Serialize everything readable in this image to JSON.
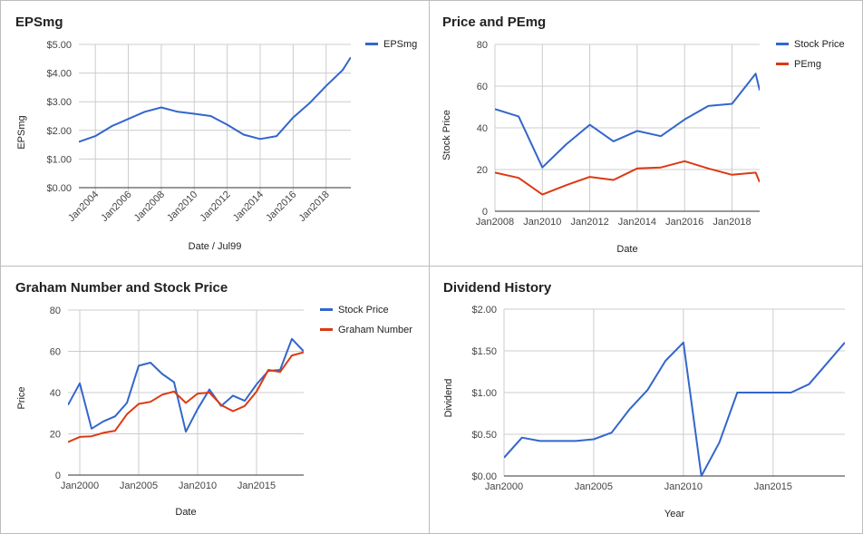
{
  "chart_data": [
    {
      "type": "line",
      "title": "EPSmg",
      "xlabel": "Date / Jul99",
      "ylabel": "EPSmg",
      "ylim": [
        0,
        5
      ],
      "yticks": [
        "$0.00",
        "$1.00",
        "$2.00",
        "$3.00",
        "$4.00",
        "$5.00"
      ],
      "xticks": [
        "Jan2004",
        "Jan2006",
        "Jan2008",
        "Jan2010",
        "Jan2012",
        "Jan2014",
        "Jan2016",
        "Jan2018"
      ],
      "legend": "right",
      "series": [
        {
          "name": "EPSmg",
          "color": "#3366cc",
          "x": [
            "2003-01",
            "2004-01",
            "2005-01",
            "2006-01",
            "2007-01",
            "2008-01",
            "2009-01",
            "2010-01",
            "2011-01",
            "2012-01",
            "2013-01",
            "2014-01",
            "2015-01",
            "2016-01",
            "2017-01",
            "2018-01",
            "2019-01",
            "2019-07"
          ],
          "values": [
            1.6,
            1.8,
            2.15,
            2.4,
            2.65,
            2.8,
            2.65,
            2.58,
            2.5,
            2.2,
            1.85,
            1.7,
            1.8,
            2.45,
            2.95,
            3.55,
            4.1,
            4.55
          ]
        }
      ]
    },
    {
      "type": "line",
      "title": "Price and PEmg",
      "xlabel": "Date",
      "ylabel": "Stock Price",
      "ylim": [
        0,
        80
      ],
      "yticks": [
        "0",
        "20",
        "40",
        "60",
        "80"
      ],
      "xticks": [
        "Jan2008",
        "Jan2010",
        "Jan2012",
        "Jan2014",
        "Jan2016",
        "Jan2018"
      ],
      "legend": "right",
      "series": [
        {
          "name": "Stock Price",
          "color": "#3366cc",
          "x": [
            "2008-01",
            "2009-01",
            "2010-01",
            "2011-01",
            "2012-01",
            "2013-01",
            "2014-01",
            "2015-01",
            "2016-01",
            "2017-01",
            "2018-01",
            "2019-01",
            "2019-03"
          ],
          "values": [
            49,
            45.5,
            21,
            32,
            41.5,
            33.5,
            38.5,
            36,
            44,
            50.5,
            51.5,
            66,
            58
          ]
        },
        {
          "name": "PEmg",
          "color": "#dc3912",
          "x": [
            "2008-01",
            "2009-01",
            "2010-01",
            "2011-01",
            "2012-01",
            "2013-01",
            "2014-01",
            "2015-01",
            "2016-01",
            "2017-01",
            "2018-01",
            "2019-01",
            "2019-03"
          ],
          "values": [
            18.5,
            16,
            8,
            12.5,
            16.5,
            15,
            20.5,
            21,
            24,
            20.5,
            17.5,
            18.5,
            14
          ]
        }
      ]
    },
    {
      "type": "line",
      "title": "Graham Number and Stock Price",
      "xlabel": "Date",
      "ylabel": "Price",
      "ylim": [
        0,
        80
      ],
      "yticks": [
        "0",
        "20",
        "40",
        "60",
        "80"
      ],
      "xticks": [
        "Jan2000",
        "Jan2005",
        "Jan2010",
        "Jan2015"
      ],
      "legend": "right",
      "series": [
        {
          "name": "Stock Price",
          "color": "#3366cc",
          "x": [
            "1999-01",
            "2000-01",
            "2001-01",
            "2002-01",
            "2003-01",
            "2004-01",
            "2005-01",
            "2006-01",
            "2007-01",
            "2008-01",
            "2009-01",
            "2010-01",
            "2011-01",
            "2012-01",
            "2013-01",
            "2014-01",
            "2015-01",
            "2016-01",
            "2017-01",
            "2018-01",
            "2019-01"
          ],
          "values": [
            34,
            44.5,
            22.5,
            26,
            28.5,
            35,
            53,
            54.5,
            49,
            45,
            21,
            32,
            41.5,
            33.5,
            38.5,
            36,
            44,
            50.5,
            51,
            66,
            60
          ]
        },
        {
          "name": "Graham Number",
          "color": "#dc3912",
          "x": [
            "1999-01",
            "2000-01",
            "2001-01",
            "2002-01",
            "2003-01",
            "2004-01",
            "2005-01",
            "2006-01",
            "2007-01",
            "2008-01",
            "2009-01",
            "2010-01",
            "2011-01",
            "2012-01",
            "2013-01",
            "2014-01",
            "2015-01",
            "2016-01",
            "2017-01",
            "2018-01",
            "2019-01"
          ],
          "values": [
            16,
            18.5,
            18.8,
            20.5,
            21.5,
            29.5,
            34.5,
            35.5,
            39,
            40.5,
            35,
            39.5,
            40,
            34,
            31,
            33.5,
            40.5,
            51,
            50,
            58,
            59.5
          ]
        }
      ]
    },
    {
      "type": "line",
      "title": "Dividend History",
      "xlabel": "Year",
      "ylabel": "Dividend",
      "ylim": [
        0,
        2
      ],
      "yticks": [
        "$0.00",
        "$0.50",
        "$1.00",
        "$1.50",
        "$2.00"
      ],
      "xticks": [
        "Jan2000",
        "Jan2005",
        "Jan2010",
        "Jan2015"
      ],
      "series": [
        {
          "name": "",
          "color": "#3366cc",
          "x": [
            "2000-01",
            "2001-01",
            "2002-01",
            "2003-01",
            "2004-01",
            "2005-01",
            "2006-01",
            "2007-01",
            "2008-01",
            "2009-01",
            "2010-01",
            "2011-01",
            "2012-01",
            "2013-01",
            "2014-01",
            "2015-01",
            "2016-01",
            "2017-01",
            "2018-01",
            "2019-01"
          ],
          "values": [
            0.22,
            0.46,
            0.42,
            0.42,
            0.42,
            0.44,
            0.52,
            0.8,
            1.03,
            1.38,
            1.6,
            0.0,
            0.4,
            1.0,
            1.0,
            1.0,
            1.0,
            1.1,
            1.35,
            1.6
          ]
        }
      ]
    }
  ]
}
